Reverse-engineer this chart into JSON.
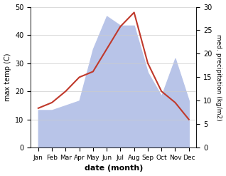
{
  "months": [
    "Jan",
    "Feb",
    "Mar",
    "Apr",
    "May",
    "Jun",
    "Jul",
    "Aug",
    "Sep",
    "Oct",
    "Nov",
    "Dec"
  ],
  "temperature_C": [
    14,
    16,
    20,
    25,
    27,
    35,
    43,
    48,
    30,
    20,
    16,
    10
  ],
  "precipitation_kg": [
    8,
    8,
    9,
    10,
    21,
    28,
    26,
    26,
    16,
    11,
    19,
    10
  ],
  "temp_color": "#c0392b",
  "precip_fill_color": "#b8c4e8",
  "temp_ylim": [
    0,
    50
  ],
  "precip_ylim": [
    0,
    30
  ],
  "xlabel": "date (month)",
  "ylabel_left": "max temp (C)",
  "ylabel_right": "med. precipitation (kg/m2)",
  "background_color": "#ffffff"
}
